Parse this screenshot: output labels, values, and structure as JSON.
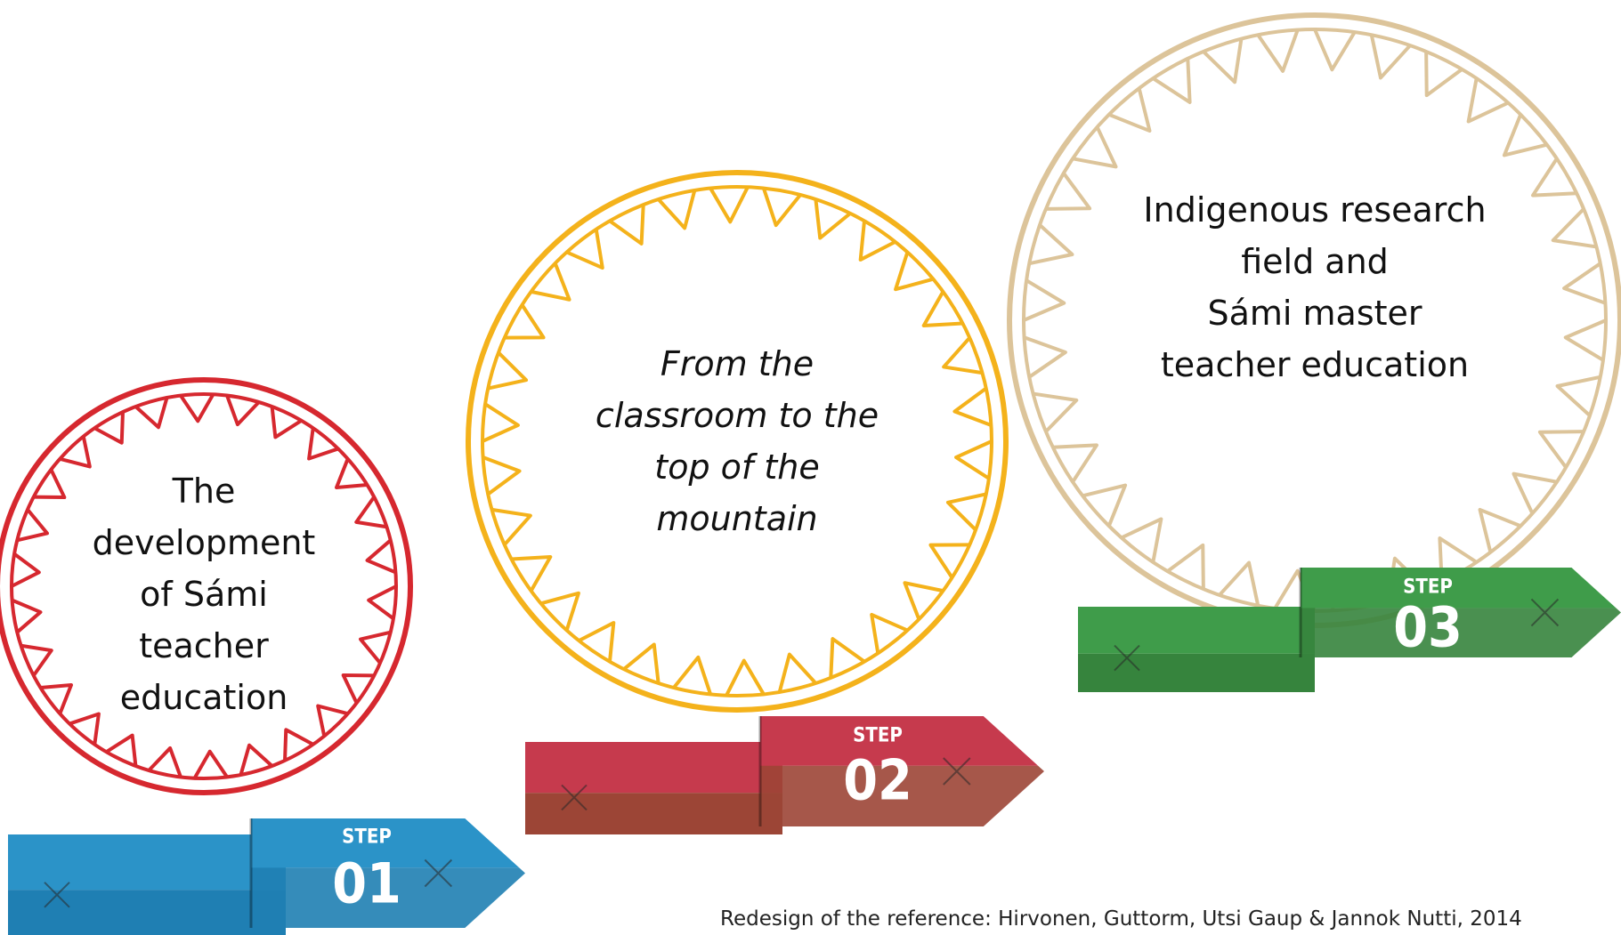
{
  "steps": [
    {
      "text": [
        "The",
        "development",
        "of Sámi",
        "teacher",
        "education"
      ],
      "italic": false,
      "step": "STEP",
      "number": "01"
    },
    {
      "text": [
        "From the",
        "classroom to the",
        "top of the",
        "mountain"
      ],
      "italic": true,
      "step": "STEP",
      "number": "02"
    },
    {
      "text": [
        "Indigenous research",
        "field and",
        "Sámi master",
        "teacher education"
      ],
      "italic": false,
      "step": "STEP",
      "number": "03"
    }
  ],
  "reference": "Redesign of the reference: Hirvonen, Guttorm, Utsi Gaup & Jannok Nutti, 2014"
}
